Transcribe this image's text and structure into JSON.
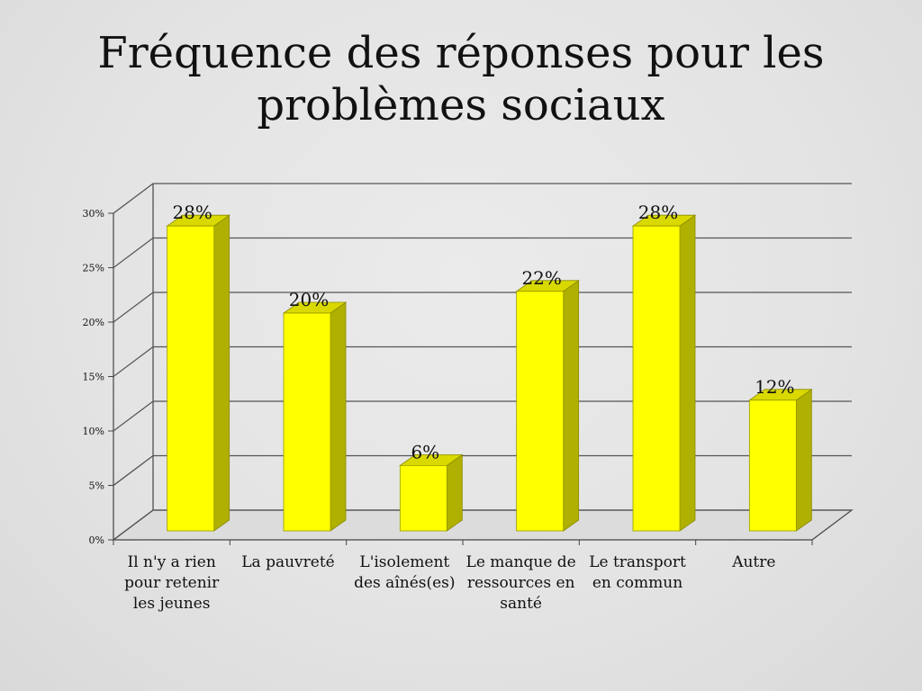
{
  "title": "Fréquence des réponses pour les problèmes sociaux",
  "chart_data": {
    "type": "bar",
    "style": "3d-column",
    "categories": [
      "Il n'y a rien pour retenir les jeunes",
      "La pauvreté",
      "L'isolement des aînés(es)",
      "Le manque de ressources en santé",
      "Le transport en commun",
      "Autre"
    ],
    "values": [
      28,
      20,
      6,
      22,
      28,
      12
    ],
    "value_labels": [
      "28%",
      "20%",
      "6%",
      "22%",
      "28%",
      "12%"
    ],
    "ylim": [
      0,
      30
    ],
    "yticks": [
      0,
      5,
      10,
      15,
      20,
      25,
      30
    ],
    "ytick_labels": [
      "0%",
      "5%",
      "10%",
      "15%",
      "20%",
      "25%",
      "30%"
    ],
    "grid": true,
    "legend": "none",
    "bar_color": "#ffff00",
    "bar_side_color": "#b0b000",
    "bar_top_color": "#d9d900"
  }
}
